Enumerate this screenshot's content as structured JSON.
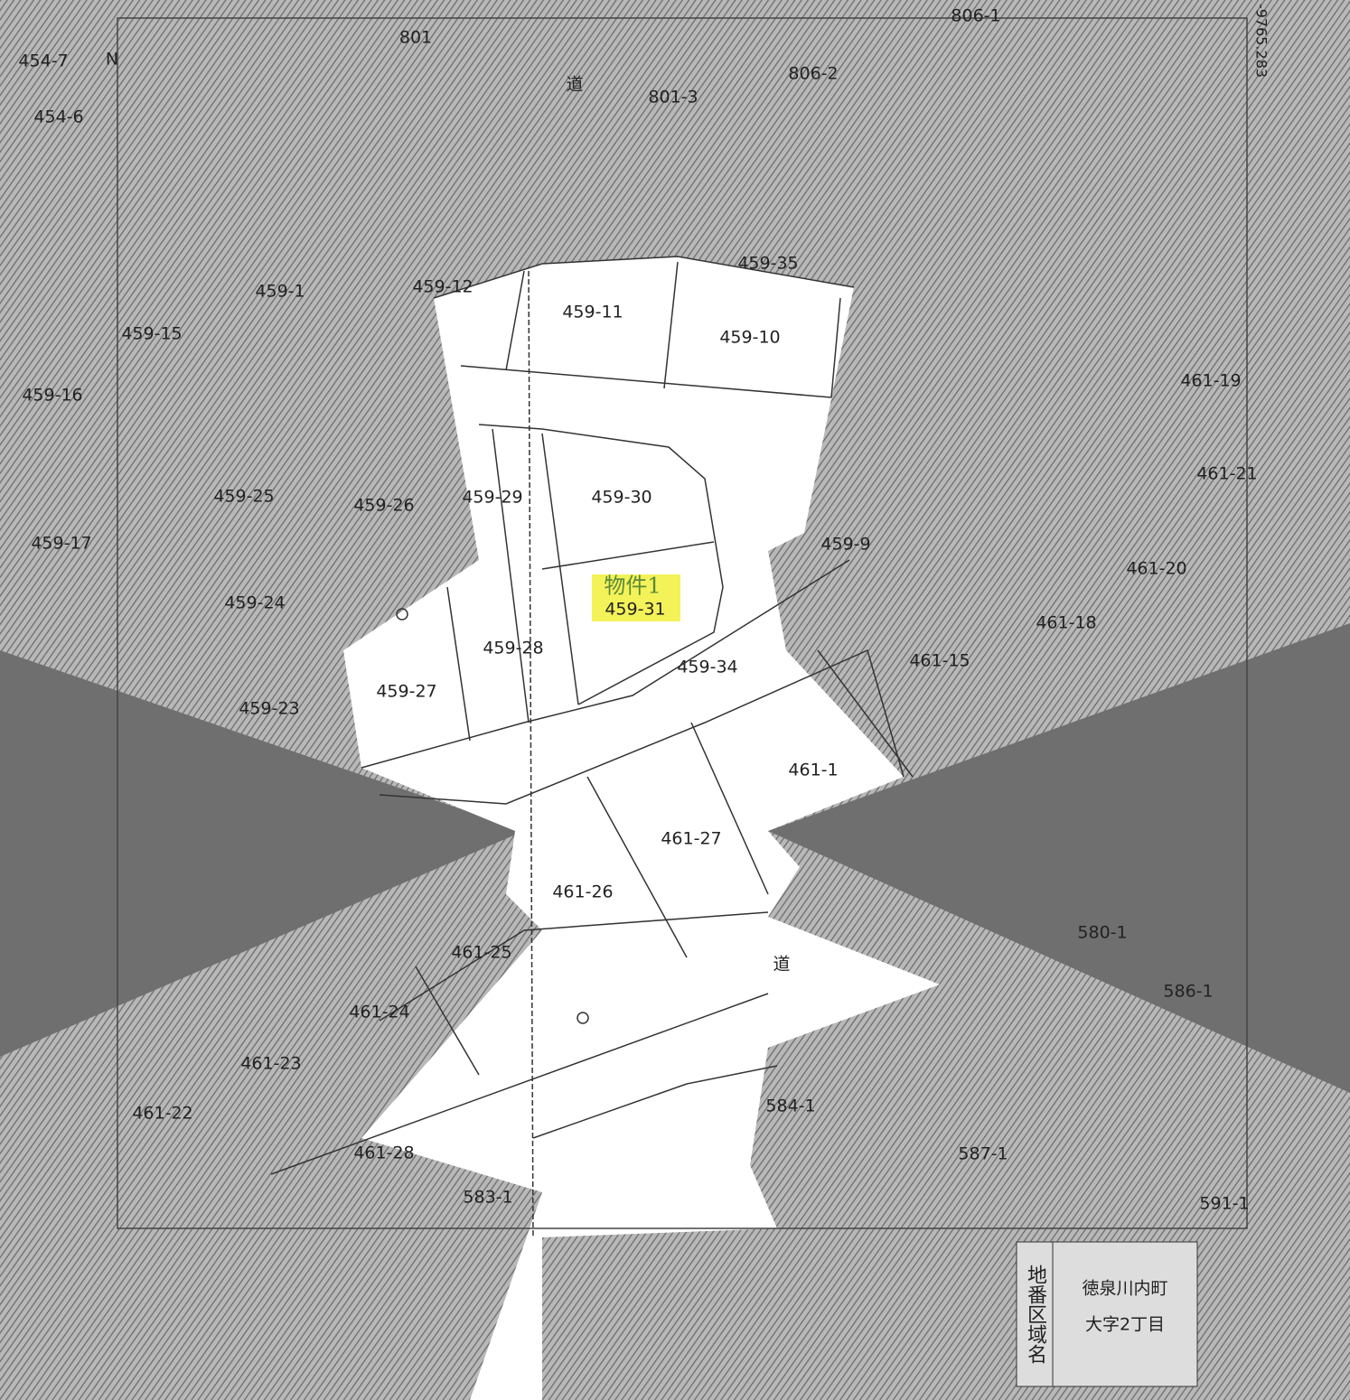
{
  "map": {
    "labels": [
      "454-7",
      "454-6",
      "N",
      "801",
      "道",
      "806-1",
      "806-2",
      "801-3",
      "459-12",
      "459-11",
      "459-10",
      "459-35",
      "459-15",
      "459-16",
      "459-1",
      "459-25",
      "459-26",
      "459-29",
      "459-30",
      "459-17",
      "459-24",
      "459-31",
      "459-28",
      "459-34",
      "459-27",
      "459-23",
      "459-9",
      "461-19",
      "461-21",
      "461-20",
      "461-15",
      "461-18",
      "461-1",
      "461-27",
      "461-26",
      "461-25",
      "道",
      "461-24",
      "461-23",
      "461-22",
      "461-28",
      "583-1",
      "584-1",
      "587-1",
      "580-1",
      "586-1",
      "591-1"
    ],
    "property_label": "物件1",
    "coordinate": "-9765.283",
    "legend": {
      "heading": "地番区域名",
      "lines": [
        "徳泉川内町",
        "大字2丁目"
      ]
    }
  }
}
